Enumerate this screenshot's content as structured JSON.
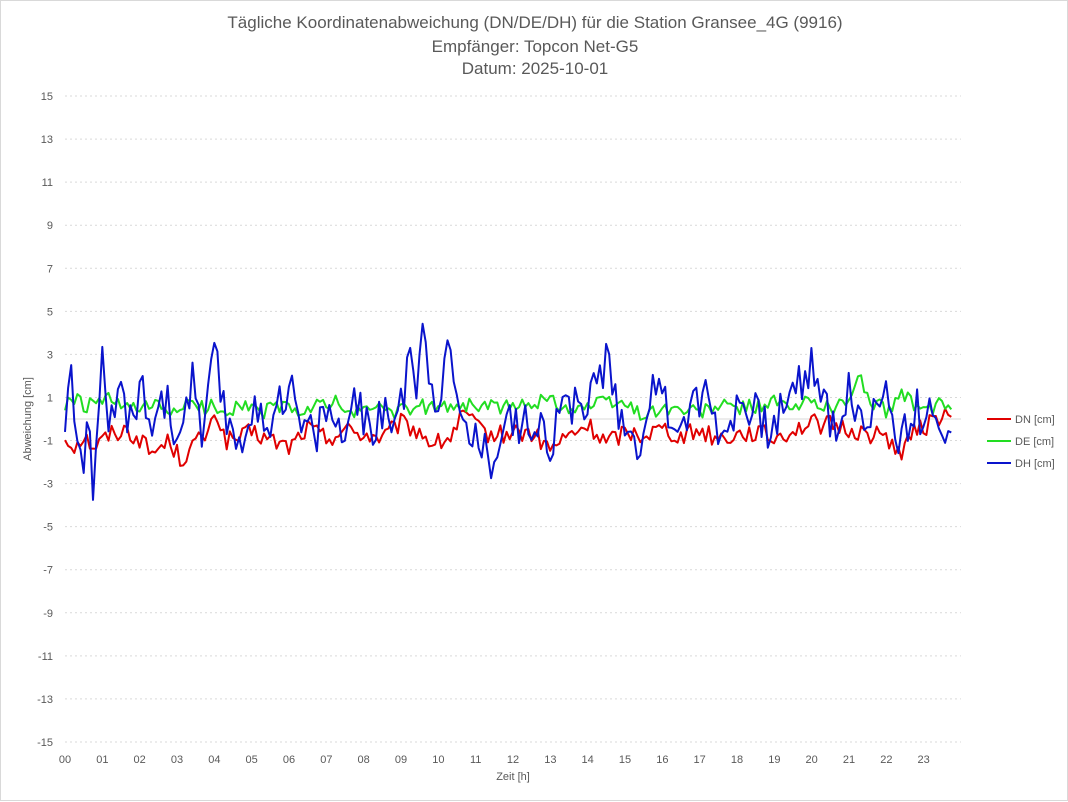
{
  "chart_data": {
    "type": "line",
    "title_lines": [
      "Tägliche Koordinatenabweichung (DN/DE/DH) für die Station Gransee_4G (9916)",
      "Empfänger: Topcon Net-G5",
      "Datum: 2025-10-01"
    ],
    "xlabel": "Zeit [h]",
    "ylabel": "Abweichung [cm]",
    "xlim": [
      0,
      24
    ],
    "ylim": [
      -15,
      15
    ],
    "x_ticks": [
      "00",
      "01",
      "02",
      "03",
      "04",
      "05",
      "06",
      "07",
      "08",
      "09",
      "10",
      "11",
      "12",
      "13",
      "14",
      "15",
      "16",
      "17",
      "18",
      "19",
      "20",
      "21",
      "22",
      "23"
    ],
    "y_ticks": [
      15,
      13,
      11,
      9,
      7,
      5,
      3,
      1,
      -1,
      -3,
      -5,
      -7,
      -9,
      -11,
      -13,
      -15
    ],
    "grid": true,
    "legend_position": "right",
    "x_interval_hours": 0.0833,
    "series": [
      {
        "name": "DN [cm]",
        "color": "#e00000",
        "anchors": [
          [
            0,
            -0.9
          ],
          [
            0.25,
            -1.2
          ],
          [
            0.5,
            -0.8
          ],
          [
            0.8,
            -1.3
          ],
          [
            1.2,
            -0.7
          ],
          [
            1.6,
            -0.5
          ],
          [
            2.0,
            -0.9
          ],
          [
            2.3,
            -1.6
          ],
          [
            2.8,
            -1.0
          ],
          [
            3.1,
            -1.9
          ],
          [
            3.5,
            -1.1
          ],
          [
            3.9,
            -0.6
          ],
          [
            4.0,
            0.5
          ],
          [
            4.3,
            -1.0
          ],
          [
            4.7,
            -0.9
          ],
          [
            5.0,
            -0.6
          ],
          [
            5.5,
            -1.0
          ],
          [
            6.0,
            -1.3
          ],
          [
            6.5,
            -0.4
          ],
          [
            7.0,
            -0.9
          ],
          [
            7.5,
            -0.5
          ],
          [
            8.0,
            -0.7
          ],
          [
            8.5,
            -0.9
          ],
          [
            9.0,
            -0.2
          ],
          [
            9.5,
            -0.6
          ],
          [
            9.9,
            -1.2
          ],
          [
            10.3,
            -0.9
          ],
          [
            10.7,
            0.3
          ],
          [
            11.0,
            -0.4
          ],
          [
            11.5,
            -0.8
          ],
          [
            12.0,
            -0.6
          ],
          [
            12.5,
            -0.7
          ],
          [
            13.0,
            -1.4
          ],
          [
            13.5,
            -0.8
          ],
          [
            14.0,
            -0.3
          ],
          [
            14.5,
            -1.1
          ],
          [
            15.0,
            -0.6
          ],
          [
            15.5,
            -0.7
          ],
          [
            16.0,
            -0.4
          ],
          [
            16.5,
            -0.8
          ],
          [
            17.0,
            -0.5
          ],
          [
            17.5,
            -0.9
          ],
          [
            18.0,
            -0.7
          ],
          [
            18.5,
            -0.6
          ],
          [
            19.0,
            -0.9
          ],
          [
            19.5,
            -0.5
          ],
          [
            20.0,
            -0.2
          ],
          [
            20.5,
            -0.3
          ],
          [
            21.0,
            -0.5
          ],
          [
            21.5,
            -0.7
          ],
          [
            22.0,
            -0.8
          ],
          [
            22.4,
            -1.6
          ],
          [
            22.8,
            -0.5
          ],
          [
            23.2,
            -0.2
          ],
          [
            23.6,
            0.4
          ],
          [
            23.8,
            -0.6
          ]
        ]
      },
      {
        "name": "DE [cm]",
        "color": "#22dd22",
        "anchors": [
          [
            0,
            0.5
          ],
          [
            0.2,
            1.0
          ],
          [
            0.5,
            0.6
          ],
          [
            0.8,
            0.7
          ],
          [
            1.2,
            0.9
          ],
          [
            1.6,
            0.5
          ],
          [
            2.0,
            0.4
          ],
          [
            2.4,
            0.6
          ],
          [
            2.8,
            0.3
          ],
          [
            3.2,
            0.7
          ],
          [
            3.6,
            0.5
          ],
          [
            4.0,
            0.6
          ],
          [
            4.4,
            0.4
          ],
          [
            4.8,
            0.8
          ],
          [
            5.2,
            0.2
          ],
          [
            5.6,
            0.6
          ],
          [
            6.0,
            0.5
          ],
          [
            6.4,
            0.3
          ],
          [
            6.8,
            0.6
          ],
          [
            7.2,
            0.9
          ],
          [
            7.6,
            0.2
          ],
          [
            8.0,
            0.4
          ],
          [
            8.4,
            0.7
          ],
          [
            8.8,
            0.3
          ],
          [
            9.2,
            0.4
          ],
          [
            9.6,
            0.6
          ],
          [
            10.0,
            0.5
          ],
          [
            10.5,
            0.7
          ],
          [
            11.0,
            0.6
          ],
          [
            11.5,
            0.6
          ],
          [
            12.0,
            0.5
          ],
          [
            12.5,
            0.8
          ],
          [
            13.0,
            0.9
          ],
          [
            13.5,
            0.5
          ],
          [
            14.0,
            0.6
          ],
          [
            14.5,
            0.8
          ],
          [
            15.0,
            0.7
          ],
          [
            15.5,
            0.2
          ],
          [
            16.0,
            0.5
          ],
          [
            16.5,
            0.4
          ],
          [
            17.0,
            0.3
          ],
          [
            17.5,
            0.6
          ],
          [
            18.0,
            0.5
          ],
          [
            18.5,
            0.6
          ],
          [
            19.0,
            0.8
          ],
          [
            19.5,
            0.4
          ],
          [
            20.0,
            0.9
          ],
          [
            20.5,
            0.5
          ],
          [
            21.0,
            0.9
          ],
          [
            21.3,
            1.9
          ],
          [
            21.6,
            0.8
          ],
          [
            22.0,
            0.4
          ],
          [
            22.4,
            1.1
          ],
          [
            22.8,
            0.6
          ],
          [
            23.2,
            0.3
          ],
          [
            23.5,
            0.9
          ],
          [
            23.8,
            0.3
          ]
        ]
      },
      {
        "name": "DH [cm]",
        "color": "#0a14cc",
        "anchors": [
          [
            0,
            -0.2
          ],
          [
            0.15,
            2.4
          ],
          [
            0.3,
            -0.5
          ],
          [
            0.45,
            -2.5
          ],
          [
            0.6,
            0.5
          ],
          [
            0.75,
            -3.0
          ],
          [
            0.9,
            -0.6
          ],
          [
            1.0,
            2.3
          ],
          [
            1.15,
            -1.2
          ],
          [
            1.5,
            1.8
          ],
          [
            1.8,
            -0.8
          ],
          [
            2.1,
            1.9
          ],
          [
            2.3,
            -0.7
          ],
          [
            2.6,
            1.5
          ],
          [
            3.0,
            -1.0
          ],
          [
            3.4,
            1.9
          ],
          [
            3.7,
            -1.2
          ],
          [
            4.0,
            3.0
          ],
          [
            4.3,
            0.0
          ],
          [
            4.7,
            -1.0
          ],
          [
            5.0,
            0.5
          ],
          [
            5.3,
            -0.5
          ],
          [
            5.7,
            1.0
          ],
          [
            6.0,
            1.7
          ],
          [
            6.3,
            -0.3
          ],
          [
            6.7,
            -0.8
          ],
          [
            7.0,
            0.6
          ],
          [
            7.4,
            -0.7
          ],
          [
            7.8,
            0.5
          ],
          [
            8.2,
            -0.4
          ],
          [
            8.6,
            0.2
          ],
          [
            9.0,
            0.4
          ],
          [
            9.25,
            3.8
          ],
          [
            9.4,
            1.6
          ],
          [
            9.6,
            4.4
          ],
          [
            9.8,
            2.0
          ],
          [
            10.0,
            0.8
          ],
          [
            10.2,
            3.8
          ],
          [
            10.4,
            1.5
          ],
          [
            10.6,
            0.2
          ],
          [
            11.0,
            -0.9
          ],
          [
            11.4,
            -2.0
          ],
          [
            11.8,
            0.6
          ],
          [
            12.2,
            -0.7
          ],
          [
            12.6,
            0.4
          ],
          [
            13.0,
            -1.0
          ],
          [
            13.4,
            0.8
          ],
          [
            13.8,
            0.3
          ],
          [
            14.2,
            1.8
          ],
          [
            14.5,
            2.8
          ],
          [
            14.7,
            0.8
          ],
          [
            15.0,
            0.2
          ],
          [
            15.3,
            -1.5
          ],
          [
            15.6,
            0.9
          ],
          [
            16.0,
            1.2
          ],
          [
            16.4,
            -0.2
          ],
          [
            16.8,
            0.7
          ],
          [
            17.2,
            1.2
          ],
          [
            17.6,
            -0.8
          ],
          [
            18.0,
            0.9
          ],
          [
            18.4,
            0.3
          ],
          [
            18.8,
            -0.5
          ],
          [
            19.2,
            0.4
          ],
          [
            19.6,
            1.4
          ],
          [
            20.0,
            2.7
          ],
          [
            20.3,
            0.9
          ],
          [
            20.7,
            -0.5
          ],
          [
            21.0,
            1.5
          ],
          [
            21.4,
            -0.7
          ],
          [
            21.8,
            0.8
          ],
          [
            22.0,
            2.1
          ],
          [
            22.3,
            -1.2
          ],
          [
            22.6,
            0.0
          ],
          [
            23.0,
            0.5
          ],
          [
            23.3,
            -0.6
          ],
          [
            23.6,
            -1.3
          ],
          [
            23.8,
            0.8
          ]
        ]
      }
    ]
  }
}
